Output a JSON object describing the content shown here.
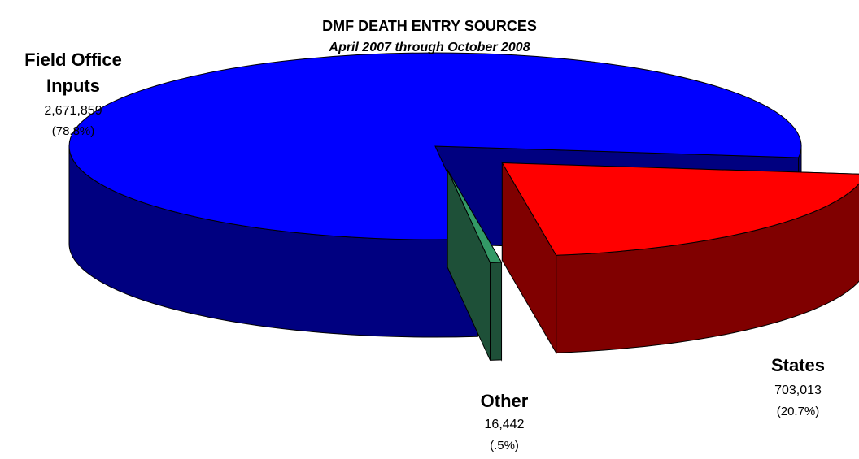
{
  "chart_data": {
    "type": "pie3d",
    "title": "DMF DEATH ENTRY SOURCES",
    "subtitle": "April 2007 through October 2008",
    "categories": [
      "Field Office Inputs",
      "States",
      "Other"
    ],
    "values": [
      2671859,
      703013,
      16442
    ],
    "value_labels": [
      "2,671,859",
      "703,013",
      "16,442"
    ],
    "percents": [
      78.8,
      20.7,
      0.5
    ],
    "percent_labels": [
      "(78.8%)",
      "(20.7%)",
      "(.5%)"
    ],
    "colors": [
      "#0000ff",
      "#ff0000",
      "#339966"
    ],
    "side_colors": [
      "#000080",
      "#800000",
      "#1e5038"
    ]
  }
}
